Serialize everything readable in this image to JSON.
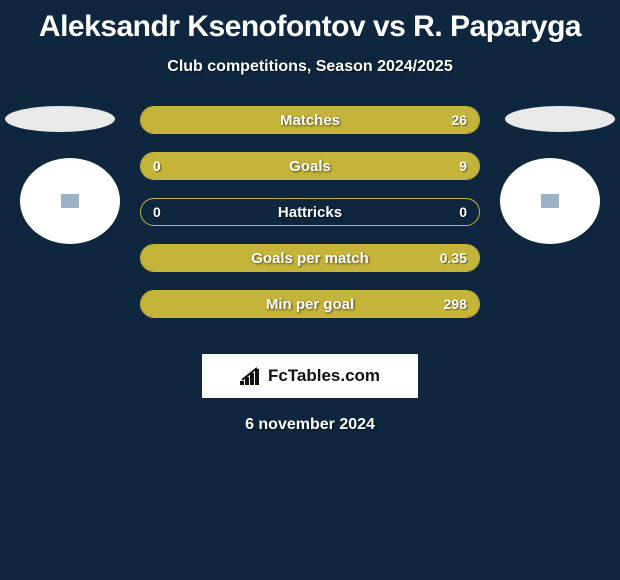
{
  "header": {
    "title": "Aleksandr Ksenofontov vs R. Paparyga",
    "subtitle": "Club competitions, Season 2024/2025"
  },
  "colors": {
    "background": "#0e273e",
    "bar_fill": "#c5b43a",
    "bar_border": "#c5b43a",
    "text": "#ffffff",
    "ellipse": "#e9e9e9",
    "circle": "#ffffff",
    "brand_bg": "#ffffff",
    "brand_text": "#111111"
  },
  "stats": [
    {
      "label": "Matches",
      "left_val": "",
      "right_val": "26",
      "left_pct": 0,
      "right_pct": 100
    },
    {
      "label": "Goals",
      "left_val": "0",
      "right_val": "9",
      "left_pct": 0,
      "right_pct": 100
    },
    {
      "label": "Hattricks",
      "left_val": "0",
      "right_val": "0",
      "left_pct": 0,
      "right_pct": 0
    },
    {
      "label": "Goals per match",
      "left_val": "",
      "right_val": "0.35",
      "left_pct": 0,
      "right_pct": 100
    },
    {
      "label": "Min per goal",
      "left_val": "",
      "right_val": "298",
      "left_pct": 0,
      "right_pct": 100
    }
  ],
  "brand": {
    "text": "FcTables.com"
  },
  "footer": {
    "date": "6 november 2024"
  },
  "avatar": {
    "placeholder_color": "#5a7fa3"
  }
}
